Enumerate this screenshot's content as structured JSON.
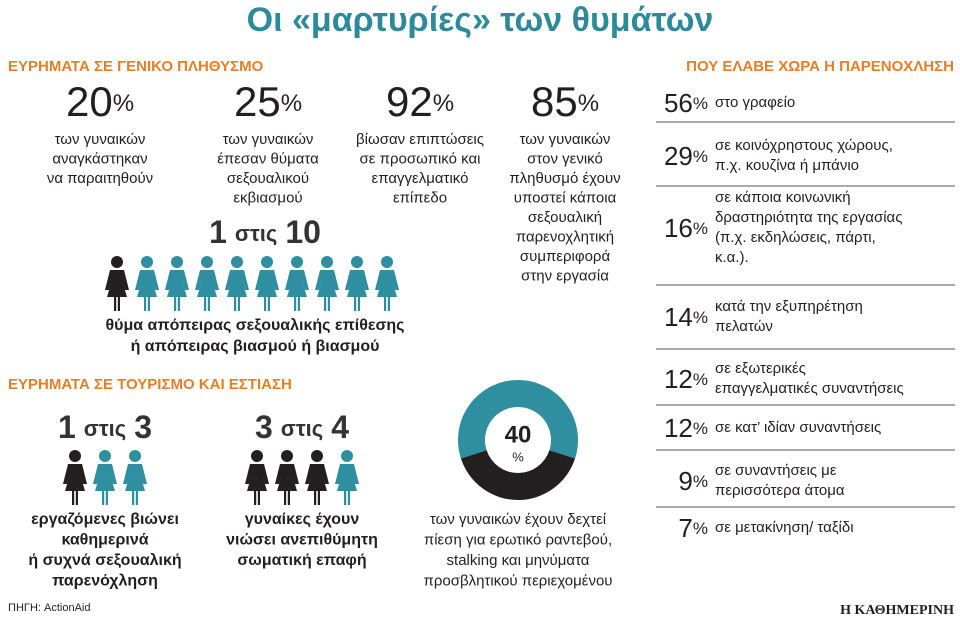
{
  "title": "Οι «μαρτυρίες» των θυμάτων",
  "general": {
    "heading": "ΕΥΡΗΜΑΤΑ  ΣΕ ΓΕΝΙΚΟ ΠΛΗΘΥΣΜΟ",
    "stats": [
      {
        "value": 20,
        "unit": "%",
        "lines": [
          "των γυναικών",
          "αναγκάστηκαν",
          "να παραιτηθούν"
        ]
      },
      {
        "value": 25,
        "unit": "%",
        "lines": [
          "των γυναικών",
          "έπεσαν θύματα",
          "σεξουαλικού",
          "εκβιασμού"
        ]
      },
      {
        "value": 92,
        "unit": "%",
        "lines": [
          "βίωσαν επιπτώσεις",
          "σε προσωπικό και",
          "επαγγελματικό",
          "επίπεδο"
        ]
      },
      {
        "value": 85,
        "unit": "%",
        "lines": [
          "των γυναικών",
          "στον γενικό",
          "πληθυσμό έχουν",
          "υποστεί κάποια",
          "σεξουαλική",
          "παρενοχλητική",
          "συμπεριφορά",
          "στην εργασία"
        ]
      }
    ],
    "ratio": {
      "count": 1,
      "word": "στις",
      "total": 10,
      "lines": [
        "θύμα απόπειρας σεξουαλικής επίθεσης",
        "ή απόπειρας βιασμού ή βιασμού"
      ]
    }
  },
  "tourism": {
    "heading": "ΕΥΡΗΜΑΤΑ ΣΕ ΤΟΥΡΙΣΜΟ ΚΑΙ ΕΣΤΙΑΣΗ",
    "ratios": [
      {
        "count": 1,
        "word": "στις",
        "total": 3,
        "lines": [
          "εργαζόμενες βιώνει",
          "καθημερινά",
          "ή συχνά σεξουαλική",
          "παρενόχληση"
        ]
      },
      {
        "count": 3,
        "word": "στις",
        "total": 4,
        "lines": [
          "γυναίκες έχουν",
          "νιώσει ανεπιθύμητη",
          "σωματική επαφή"
        ]
      }
    ],
    "donut": {
      "value": 40,
      "unit": "%",
      "lines": [
        "των γυναικών έχουν δεχτεί",
        "πίεση για ερωτικό ραντεβού,",
        "stalking και μηνύματα",
        "προσβλητικού περιεχομένου"
      ]
    }
  },
  "where": {
    "heading": "ΠΟΥ ΕΛΑΒΕ ΧΩΡΑ Η ΠΑΡΕΝΟΧΛΗΣΗ",
    "items": [
      {
        "value": 56,
        "unit": "%",
        "lines": [
          "στο γραφείο"
        ]
      },
      {
        "value": 29,
        "unit": "%",
        "lines": [
          "σε κοινόχρηστους χώρους,",
          "π.χ. κουζίνα ή μπάνιο"
        ]
      },
      {
        "value": 16,
        "unit": "%",
        "lines": [
          "σε κάποια κοινωνική",
          "δραστηριότητα της εργασίας",
          "(π.χ. εκδηλώσεις, πάρτι,",
          "κ.α.)."
        ]
      },
      {
        "value": 14,
        "unit": "%",
        "lines": [
          "κατά την εξυπηρέτηση",
          "πελατών"
        ]
      },
      {
        "value": 12,
        "unit": "%",
        "lines": [
          "σε εξωτερικές",
          "επαγγελματικές συναντήσεις"
        ]
      },
      {
        "value": 12,
        "unit": "%",
        "lines": [
          "σε κατ’ ιδίαν συναντήσεις"
        ]
      },
      {
        "value": 9,
        "unit": "%",
        "lines": [
          "σε συναντήσεις με",
          "περισσότερα άτομα"
        ]
      },
      {
        "value": 7,
        "unit": "%",
        "lines": [
          "σε μετακίνηση/ ταξίδι"
        ]
      }
    ]
  },
  "source": "ΠΗΓΗ: ActionAid",
  "brand": "Η ΚΑΘΗΜΕΡΙΝΗ"
}
